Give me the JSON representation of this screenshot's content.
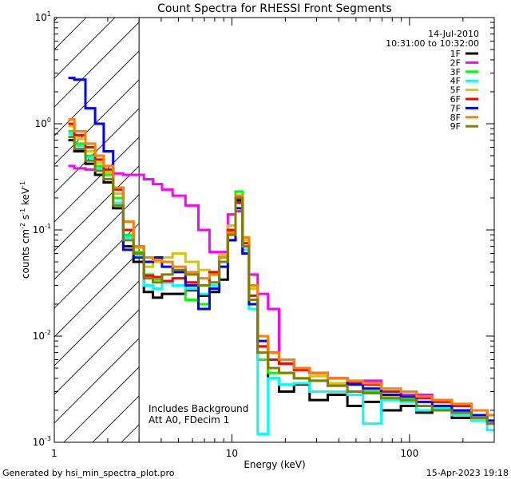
{
  "chart_data": {
    "type": "line",
    "title": "Count Spectra for RHESSI Front Segments",
    "xlabel": "Energy (keV)",
    "ylabel": "counts cm",
    "ylabel_parts": {
      "base": "counts cm",
      "sup1": "-2",
      "mid": " s",
      "sup2": "-1",
      "end": " keV",
      "sup3": "-1"
    },
    "x_scale": "log",
    "y_scale": "log",
    "xlim": [
      1,
      300
    ],
    "ylim": [
      0.001,
      10
    ],
    "x_ticks": [
      {
        "value": 1,
        "label": "1"
      },
      {
        "value": 10,
        "label": "10"
      },
      {
        "value": 100,
        "label": "100"
      }
    ],
    "y_ticks": [
      {
        "value": 0.001,
        "base": "10",
        "exp": "-3"
      },
      {
        "value": 0.01,
        "base": "10",
        "exp": "-2"
      },
      {
        "value": 0.1,
        "base": "10",
        "exp": "-1"
      },
      {
        "value": 1,
        "base": "10",
        "exp": "0"
      },
      {
        "value": 10,
        "base": "10",
        "exp": "1"
      }
    ],
    "hatched_region": {
      "x_from": 1,
      "x_to": 3
    },
    "info": {
      "date": "14-Jul-2010",
      "time_range": "10:31:00 to 10:32:00"
    },
    "annotations": [
      "Includes Background",
      "Att A0, FDecim 1"
    ],
    "footer_left": "Generated by hsi_min_spectra_plot.pro",
    "footer_right": "15-Apr-2023 19:18",
    "series": [
      {
        "name": "1F",
        "color": "#000000",
        "energies": [
          1.2,
          1.4,
          1.6,
          1.8,
          2.0,
          2.3,
          2.6,
          3.0,
          3.4,
          3.8,
          4.3,
          5,
          6,
          7,
          8,
          9,
          10,
          11,
          12,
          13,
          15,
          17,
          20,
          25,
          30,
          40,
          50,
          60,
          80,
          100,
          120,
          150,
          200,
          250,
          300
        ],
        "values": [
          0.7,
          0.55,
          0.42,
          0.33,
          0.28,
          0.16,
          0.07,
          0.05,
          0.026,
          0.023,
          0.025,
          0.025,
          0.027,
          0.024,
          0.026,
          0.034,
          0.08,
          0.19,
          0.06,
          0.022,
          0.006,
          0.004,
          0.003,
          0.0035,
          0.0025,
          0.0028,
          0.0022,
          0.0024,
          0.002,
          0.0022,
          0.0019,
          0.002,
          0.0017,
          0.0016,
          0.0015
        ]
      },
      {
        "name": "2F",
        "color": "#ff00ff",
        "energies": [
          1.2,
          1.4,
          1.6,
          1.8,
          2.0,
          2.3,
          2.6,
          3.0,
          3.4,
          3.8,
          4.3,
          5,
          6,
          7,
          8,
          9,
          10,
          11,
          12,
          13,
          15,
          17,
          20,
          25,
          30,
          40,
          50,
          60,
          80,
          100,
          120,
          150,
          200,
          250,
          300
        ],
        "values": [
          0.4,
          0.38,
          0.37,
          0.36,
          0.35,
          0.34,
          0.33,
          0.33,
          0.3,
          0.27,
          0.24,
          0.21,
          0.17,
          0.1,
          0.062,
          0.062,
          0.14,
          0.15,
          0.07,
          0.038,
          0.025,
          0.018,
          0.006,
          0.005,
          0.0045,
          0.004,
          0.0035,
          0.0038,
          0.003,
          0.0028,
          0.0028,
          0.0025,
          0.0022,
          0.002,
          0.0018
        ]
      },
      {
        "name": "3F",
        "color": "#00ff00",
        "energies": [
          1.2,
          1.4,
          1.6,
          1.8,
          2.0,
          2.3,
          2.6,
          3.0,
          3.4,
          3.8,
          4.3,
          5,
          6,
          7,
          8,
          9,
          10,
          11,
          12,
          13,
          15,
          17,
          20,
          25,
          30,
          40,
          50,
          60,
          80,
          100,
          120,
          150,
          200,
          250,
          300
        ],
        "values": [
          0.85,
          0.65,
          0.5,
          0.4,
          0.33,
          0.2,
          0.09,
          0.062,
          0.038,
          0.034,
          0.032,
          0.03,
          0.022,
          0.02,
          0.03,
          0.05,
          0.1,
          0.23,
          0.07,
          0.018,
          0.006,
          0.0045,
          0.0045,
          0.004,
          0.0038,
          0.0035,
          0.0028,
          0.003,
          0.0025,
          0.0026,
          0.0022,
          0.002,
          0.0019,
          0.0017,
          0.0015
        ]
      },
      {
        "name": "4F",
        "color": "#00ffff",
        "energies": [
          1.2,
          1.4,
          1.6,
          1.8,
          2.0,
          2.3,
          2.6,
          3.0,
          3.4,
          3.8,
          4.3,
          5,
          6,
          7,
          8,
          9,
          10,
          11,
          12,
          13,
          15,
          17,
          20,
          25,
          30,
          40,
          50,
          60,
          80,
          100,
          120,
          150,
          200,
          250,
          300
        ],
        "values": [
          0.8,
          0.62,
          0.48,
          0.38,
          0.3,
          0.18,
          0.085,
          0.058,
          0.03,
          0.028,
          0.032,
          0.03,
          0.028,
          0.025,
          0.03,
          0.045,
          0.09,
          0.2,
          0.065,
          0.018,
          0.0012,
          0.004,
          0.0035,
          0.0036,
          0.003,
          0.003,
          0.0028,
          0.0015,
          0.0025,
          0.0024,
          0.002,
          0.0021,
          0.0018,
          0.0016,
          0.0013
        ]
      },
      {
        "name": "5F",
        "color": "#d4c800",
        "energies": [
          1.2,
          1.4,
          1.6,
          1.8,
          2.0,
          2.3,
          2.6,
          3.0,
          3.4,
          3.8,
          4.3,
          5,
          6,
          7,
          8,
          9,
          10,
          11,
          12,
          13,
          15,
          17,
          20,
          25,
          30,
          40,
          50,
          60,
          80,
          100,
          120,
          150,
          200,
          250,
          300
        ],
        "values": [
          0.95,
          0.72,
          0.55,
          0.43,
          0.35,
          0.22,
          0.1,
          0.068,
          0.045,
          0.05,
          0.055,
          0.06,
          0.05,
          0.042,
          0.04,
          0.058,
          0.11,
          0.21,
          0.08,
          0.028,
          0.008,
          0.005,
          0.0045,
          0.004,
          0.0042,
          0.0036,
          0.003,
          0.0032,
          0.0027,
          0.0027,
          0.0024,
          0.0022,
          0.002,
          0.0018,
          0.0016
        ]
      },
      {
        "name": "6F",
        "color": "#ff0000",
        "energies": [
          1.2,
          1.4,
          1.6,
          1.8,
          2.0,
          2.3,
          2.6,
          3.0,
          3.4,
          3.8,
          4.3,
          5,
          6,
          7,
          8,
          9,
          10,
          11,
          12,
          13,
          15,
          17,
          20,
          25,
          30,
          40,
          50,
          60,
          80,
          100,
          120,
          150,
          200,
          250,
          300
        ],
        "values": [
          1.0,
          0.78,
          0.6,
          0.46,
          0.37,
          0.24,
          0.1,
          0.07,
          0.037,
          0.036,
          0.033,
          0.035,
          0.032,
          0.03,
          0.04,
          0.055,
          0.1,
          0.18,
          0.075,
          0.024,
          0.008,
          0.006,
          0.0055,
          0.0048,
          0.0045,
          0.004,
          0.0036,
          0.0035,
          0.003,
          0.003,
          0.0026,
          0.0024,
          0.0022,
          0.002,
          0.0018
        ]
      },
      {
        "name": "7F",
        "color": "#0000ff",
        "energies": [
          1.2,
          1.4,
          1.6,
          1.8,
          2.0,
          2.3,
          2.6,
          3.0,
          3.4,
          3.8,
          4.3,
          5,
          6,
          7,
          8,
          9,
          10,
          11,
          12,
          13,
          15,
          17,
          20,
          25,
          30,
          40,
          50,
          60,
          80,
          100,
          120,
          150,
          200,
          250,
          300
        ],
        "values": [
          2.7,
          2.6,
          1.4,
          1.0,
          0.55,
          0.25,
          0.065,
          0.055,
          0.05,
          0.055,
          0.045,
          0.04,
          0.03,
          0.018,
          0.028,
          0.045,
          0.08,
          0.16,
          0.06,
          0.02,
          0.009,
          0.007,
          0.006,
          0.005,
          0.0045,
          0.004,
          0.0035,
          0.0032,
          0.0028,
          0.0027,
          0.0024,
          0.0022,
          0.002,
          0.0018,
          0.0016
        ]
      },
      {
        "name": "8F",
        "color": "#ff8000",
        "energies": [
          1.2,
          1.4,
          1.6,
          1.8,
          2.0,
          2.3,
          2.6,
          3.0,
          3.4,
          3.8,
          4.3,
          5,
          6,
          7,
          8,
          9,
          10,
          11,
          12,
          13,
          15,
          17,
          20,
          25,
          30,
          40,
          50,
          60,
          80,
          100,
          120,
          150,
          200,
          250,
          300
        ],
        "values": [
          1.1,
          0.85,
          0.65,
          0.5,
          0.4,
          0.25,
          0.12,
          0.07,
          0.055,
          0.052,
          0.05,
          0.045,
          0.04,
          0.035,
          0.038,
          0.055,
          0.095,
          0.21,
          0.085,
          0.03,
          0.01,
          0.007,
          0.006,
          0.005,
          0.0045,
          0.004,
          0.0038,
          0.0036,
          0.0032,
          0.003,
          0.0027,
          0.0025,
          0.0023,
          0.002,
          0.0018
        ]
      },
      {
        "name": "9F",
        "color": "#808000",
        "energies": [
          1.2,
          1.4,
          1.6,
          1.8,
          2.0,
          2.3,
          2.6,
          3.0,
          3.4,
          3.8,
          4.3,
          5,
          6,
          7,
          8,
          9,
          10,
          11,
          12,
          13,
          15,
          17,
          20,
          25,
          30,
          40,
          50,
          60,
          80,
          100,
          120,
          150,
          200,
          250,
          300
        ],
        "values": [
          0.75,
          0.58,
          0.45,
          0.36,
          0.3,
          0.17,
          0.08,
          0.06,
          0.035,
          0.032,
          0.038,
          0.042,
          0.038,
          0.03,
          0.032,
          0.05,
          0.09,
          0.2,
          0.07,
          0.022,
          0.007,
          0.005,
          0.0045,
          0.004,
          0.0038,
          0.0034,
          0.003,
          0.0029,
          0.0026,
          0.0025,
          0.0022,
          0.002,
          0.0019,
          0.0017,
          0.0015
        ]
      }
    ]
  }
}
